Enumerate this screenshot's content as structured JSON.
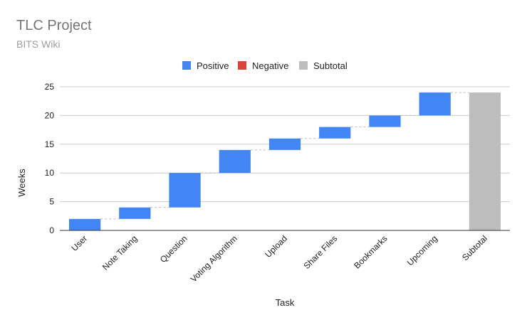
{
  "chart_data": {
    "type": "bar",
    "variant": "waterfall",
    "title": "TLC Project",
    "subtitle": "BITS Wiki",
    "xlabel": "Task",
    "ylabel": "Weeks",
    "ylim": [
      0,
      25
    ],
    "yticks": [
      0,
      5,
      10,
      15,
      20,
      25
    ],
    "grid": true,
    "legend_position": "top",
    "legend": [
      {
        "name": "Positive",
        "color": "#4285f4"
      },
      {
        "name": "Negative",
        "color": "#db4437"
      },
      {
        "name": "Subtotal",
        "color": "#bdbdbd"
      }
    ],
    "categories": [
      "User",
      "Note Taking",
      "Question",
      "Voting Algorithm",
      "Upload",
      "Share Files",
      "Bookmarks",
      "Upcoming",
      "Subtotal"
    ],
    "values": [
      2,
      2,
      6,
      4,
      2,
      2,
      2,
      4,
      24
    ],
    "kinds": [
      "positive",
      "positive",
      "positive",
      "positive",
      "positive",
      "positive",
      "positive",
      "positive",
      "subtotal"
    ]
  }
}
